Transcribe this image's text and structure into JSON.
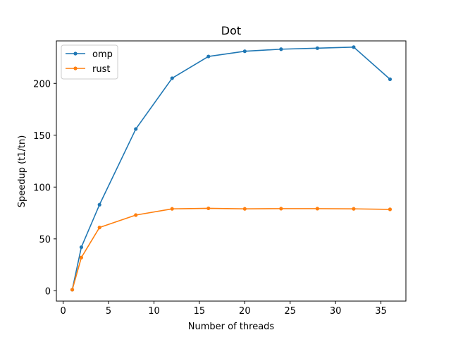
{
  "chart_data": {
    "type": "line",
    "title": "Dot",
    "xlabel": "Number of threads",
    "ylabel": "Speedup (t1/tn)",
    "xlim": [
      -0.75,
      37.75
    ],
    "ylim": [
      -10,
      241
    ],
    "xticks": [
      0,
      5,
      10,
      15,
      20,
      25,
      30,
      35
    ],
    "yticks": [
      0,
      50,
      100,
      150,
      200
    ],
    "grid": false,
    "legend": "top-left",
    "x": [
      1,
      2,
      4,
      8,
      12,
      16,
      20,
      24,
      28,
      32,
      36
    ],
    "series": [
      {
        "name": "omp",
        "color": "#1f77b4",
        "marker": "circle",
        "values": [
          1,
          42,
          83,
          156,
          205,
          226,
          231,
          233,
          234,
          235,
          204
        ]
      },
      {
        "name": "rust",
        "color": "#ff7f0e",
        "marker": "circle",
        "values": [
          1,
          32,
          61,
          73,
          79,
          79.5,
          79,
          79.2,
          79.2,
          79,
          78.5
        ]
      }
    ]
  }
}
